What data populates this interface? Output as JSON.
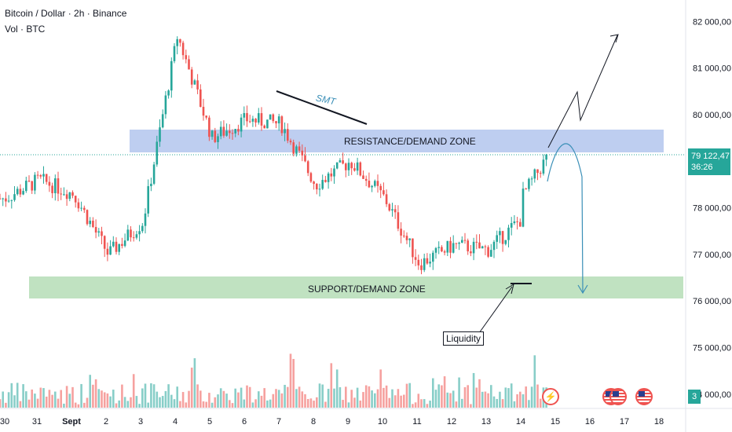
{
  "header": {
    "title": "Bitcoin / Dollar · 2h · Binance",
    "volume": "Vol · BTC"
  },
  "colors": {
    "up": "#26a69a",
    "down": "#ef5350",
    "resistance_zone": "#9bb3e8",
    "support_zone": "#a5d6a7",
    "arrow": "#3a8fb7"
  },
  "price_axis": {
    "ticks": [
      "82 000,00",
      "81 000,00",
      "80 000,00",
      "78 000,00",
      "77 000,00",
      "76 000,00",
      "75 000,00",
      "74 000,00"
    ],
    "tick_values": [
      82000,
      81000,
      80000,
      78000,
      77000,
      76000,
      75000,
      74000
    ]
  },
  "current_price": {
    "price": "79 122,47",
    "countdown": "36:26"
  },
  "volume_badge": "3",
  "time_axis": {
    "labels": [
      "30",
      "31",
      "Sept",
      "2",
      "3",
      "4",
      "5",
      "6",
      "7",
      "8",
      "9",
      "10",
      "11",
      "12",
      "13",
      "14",
      "15",
      "16",
      "17",
      "18"
    ]
  },
  "annotations": {
    "resistance_label": "RESISTANCE/DEMAND ZONE",
    "support_label": "SUPPORT/DEMAND ZONE",
    "smt_label": "SMT",
    "liquidity_label": "Liquidity"
  },
  "event_icons": [
    "lightning-icon",
    "us-flag-icon",
    "us-flag-icon",
    "us-flag-icon"
  ],
  "chart_data": {
    "type": "candlestick",
    "title": "Bitcoin / Dollar · 2h · Binance",
    "ylim": [
      73500,
      82300
    ],
    "zones": [
      {
        "name": "RESISTANCE/DEMAND ZONE",
        "from": 79100,
        "to": 79600
      },
      {
        "name": "SUPPORT/DEMAND ZONE",
        "from": 76050,
        "to": 76500
      }
    ],
    "last_price": 79122.47,
    "close_path_key_points": [
      {
        "date": "Aug 30",
        "close": 78200
      },
      {
        "date": "Aug 31",
        "close": 78600
      },
      {
        "date": "Sept 1",
        "close": 78300
      },
      {
        "date": "Sept 2",
        "close": 77000
      },
      {
        "date": "Sept 3",
        "close": 77700
      },
      {
        "date": "Sept 4",
        "close": 81700
      },
      {
        "date": "Sept 5",
        "close": 79500
      },
      {
        "date": "Sept 6",
        "close": 79900
      },
      {
        "date": "Sept 7",
        "close": 79800
      },
      {
        "date": "Sept 8",
        "close": 78500
      },
      {
        "date": "Sept 9",
        "close": 79000
      },
      {
        "date": "Sept 10",
        "close": 78200
      },
      {
        "date": "Sept 11",
        "close": 76800
      },
      {
        "date": "Sept 12",
        "close": 77200
      },
      {
        "date": "Sept 13",
        "close": 77100
      },
      {
        "date": "Sept 14",
        "close": 77800
      },
      {
        "date": "Sept 14 (last)",
        "close": 79122
      }
    ]
  }
}
